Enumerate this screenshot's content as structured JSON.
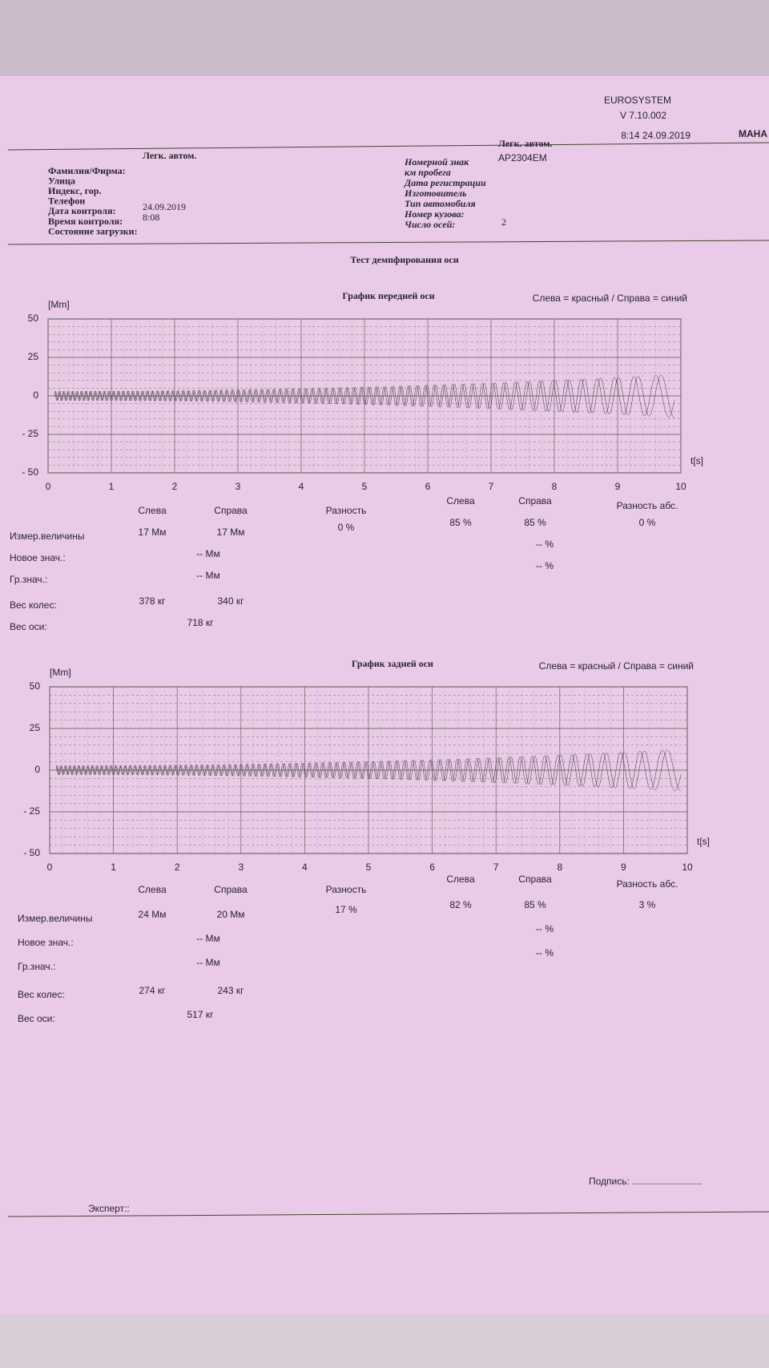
{
  "header": {
    "system": "EUROSYSTEM",
    "version": "V 7.10.002",
    "timestamp": "8:14  24.09.2019",
    "logo": "MAHA"
  },
  "client": {
    "category": "Легк. автом.",
    "fields": [
      {
        "label": "Фамилия/Фирма:"
      },
      {
        "label": "Улица"
      },
      {
        "label": "Индекс, гор."
      },
      {
        "label": "Телефон"
      },
      {
        "label": "Дата контроля:",
        "value": "24.09.2019"
      },
      {
        "label": "Время контроля:",
        "value": "8:08"
      },
      {
        "label": "Состояние загрузки:"
      }
    ]
  },
  "vehicle": {
    "category": "Легк. автом.",
    "fields": [
      {
        "label": "Номерной знак",
        "value": "AP2304EM"
      },
      {
        "label": "км пробега"
      },
      {
        "label": "Дата регистрации"
      },
      {
        "label": "Изготовитель"
      },
      {
        "label": "Тип автомобиля"
      },
      {
        "label": "Номер кузова:"
      },
      {
        "label": "Число осей:",
        "value": "2"
      }
    ]
  },
  "title": "Тест демпфирования оси",
  "charts": [
    {
      "type": "line",
      "title": "График передней оси",
      "legend": "Слева = красный / Справа = синий",
      "y_unit": "[Mm]",
      "x_unit": "t[s]",
      "ylim": [
        -50,
        50
      ],
      "yticks": [
        50,
        25,
        0,
        {
          "value": -25,
          "label": "- 25"
        },
        {
          "value": -50,
          "label": "- 50"
        }
      ],
      "xlim": [
        0,
        10
      ],
      "xticks": [
        0,
        1,
        2,
        3,
        4,
        5,
        6,
        7,
        8,
        9,
        10
      ],
      "results": {
        "headers": {
          "left": "Слева",
          "right": "Справа",
          "diff": "Разность",
          "left_pct": "Слева",
          "right_pct": "Справа",
          "diff_abs": "Разность абс."
        },
        "rows": [
          {
            "label": "Измер.величины",
            "left": "17 Мм",
            "right": "17 Мм",
            "diff": "0 %",
            "left_pct": "85 %",
            "right_pct": "85 %",
            "diff_abs": "0 %"
          },
          {
            "label": "Новое знач.:",
            "mid": "-- Мм",
            "pct": "-- %"
          },
          {
            "label": "Гр.знач.:",
            "mid": "-- Мм",
            "pct": "-- %"
          },
          {
            "label": "Вес колес:",
            "left": "378  кг",
            "right": "340  кг"
          },
          {
            "label": "Вес оси:",
            "mid": "718  кг"
          }
        ]
      }
    },
    {
      "type": "line",
      "title": "График задней оси",
      "legend": "Слева = красный / Справа = синий",
      "y_unit": "[Mm]",
      "x_unit": "t[s]",
      "ylim": [
        -50,
        50
      ],
      "yticks": [
        50,
        25,
        0,
        {
          "value": -25,
          "label": "- 25"
        },
        {
          "value": -50,
          "label": "- 50"
        }
      ],
      "xlim": [
        0,
        10
      ],
      "xticks": [
        0,
        1,
        2,
        3,
        4,
        5,
        6,
        7,
        8,
        9,
        10
      ],
      "results": {
        "headers": {
          "left": "Слева",
          "right": "Справа",
          "diff": "Разность",
          "left_pct": "Слева",
          "right_pct": "Справа",
          "diff_abs": "Разность абс."
        },
        "rows": [
          {
            "label": "Измер.величины",
            "left": "24 Мм",
            "right": "20 Мм",
            "diff": "17 %",
            "left_pct": "82 %",
            "right_pct": "85 %",
            "diff_abs": "3 %"
          },
          {
            "label": "Новое знач.:",
            "mid": "-- Мм",
            "pct": "-- %"
          },
          {
            "label": "Гр.знач.:",
            "mid": "-- Мм",
            "pct": "-- %"
          },
          {
            "label": "Вес колес:",
            "left": "274  кг",
            "right": "243  кг"
          },
          {
            "label": "Вес оси:",
            "mid": "517  кг"
          }
        ]
      }
    }
  ],
  "footer": {
    "signature": "Подпись: ..........................",
    "expert": "Эксперт::"
  }
}
